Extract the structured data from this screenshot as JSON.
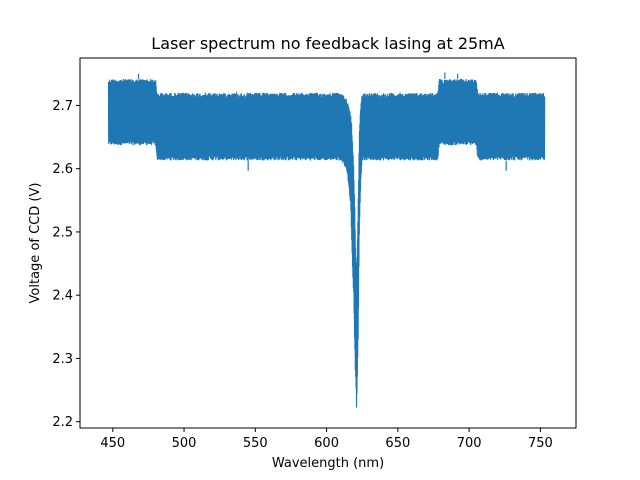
{
  "chart_data": {
    "type": "line",
    "title": "Laser spectrum no feedback lasing at 25mA",
    "xlabel": "Wavelength (nm)",
    "ylabel": "Voltage of CCD (V)",
    "xlim": [
      427,
      775
    ],
    "ylim": [
      2.19,
      2.775
    ],
    "xticks": [
      "450",
      "500",
      "550",
      "600",
      "650",
      "700",
      "750"
    ],
    "yticks": [
      "2.2",
      "2.3",
      "2.4",
      "2.5",
      "2.6",
      "2.7"
    ],
    "grid": false,
    "color": "#1f77b4",
    "series": [
      {
        "x_range": [
          447,
          753
        ],
        "band": [
          {
            "x": 447,
            "upper": 2.742,
            "lower": 2.637
          },
          {
            "x": 480,
            "upper": 2.742,
            "lower": 2.637
          },
          {
            "x": 481,
            "upper": 2.72,
            "lower": 2.613
          },
          {
            "x": 610,
            "upper": 2.72,
            "lower": 2.613
          },
          {
            "x": 614,
            "upper": 2.712,
            "lower": 2.6
          },
          {
            "x": 617,
            "upper": 2.69,
            "lower": 2.54
          },
          {
            "x": 618,
            "upper": 2.66,
            "lower": 2.45
          },
          {
            "x": 619,
            "upper": 2.6,
            "lower": 2.4
          },
          {
            "x": 620,
            "upper": 2.52,
            "lower": 2.29
          },
          {
            "x": 621,
            "upper": 2.42,
            "lower": 2.222
          },
          {
            "x": 622,
            "upper": 2.52,
            "lower": 2.3
          },
          {
            "x": 623,
            "upper": 2.66,
            "lower": 2.5
          },
          {
            "x": 624,
            "upper": 2.7,
            "lower": 2.58
          },
          {
            "x": 625,
            "upper": 2.72,
            "lower": 2.613
          },
          {
            "x": 678,
            "upper": 2.72,
            "lower": 2.613
          },
          {
            "x": 679,
            "upper": 2.742,
            "lower": 2.637
          },
          {
            "x": 705,
            "upper": 2.742,
            "lower": 2.637
          },
          {
            "x": 706,
            "upper": 2.72,
            "lower": 2.613
          },
          {
            "x": 753,
            "upper": 2.72,
            "lower": 2.613
          }
        ],
        "peaks": [
          {
            "x": 468,
            "y": 2.75
          },
          {
            "x": 537,
            "y": 2.722
          },
          {
            "x": 683,
            "y": 2.752
          },
          {
            "x": 692,
            "y": 2.75
          }
        ],
        "dips": [
          {
            "x": 545,
            "y": 2.597
          },
          {
            "x": 726,
            "y": 2.597
          }
        ]
      }
    ]
  }
}
